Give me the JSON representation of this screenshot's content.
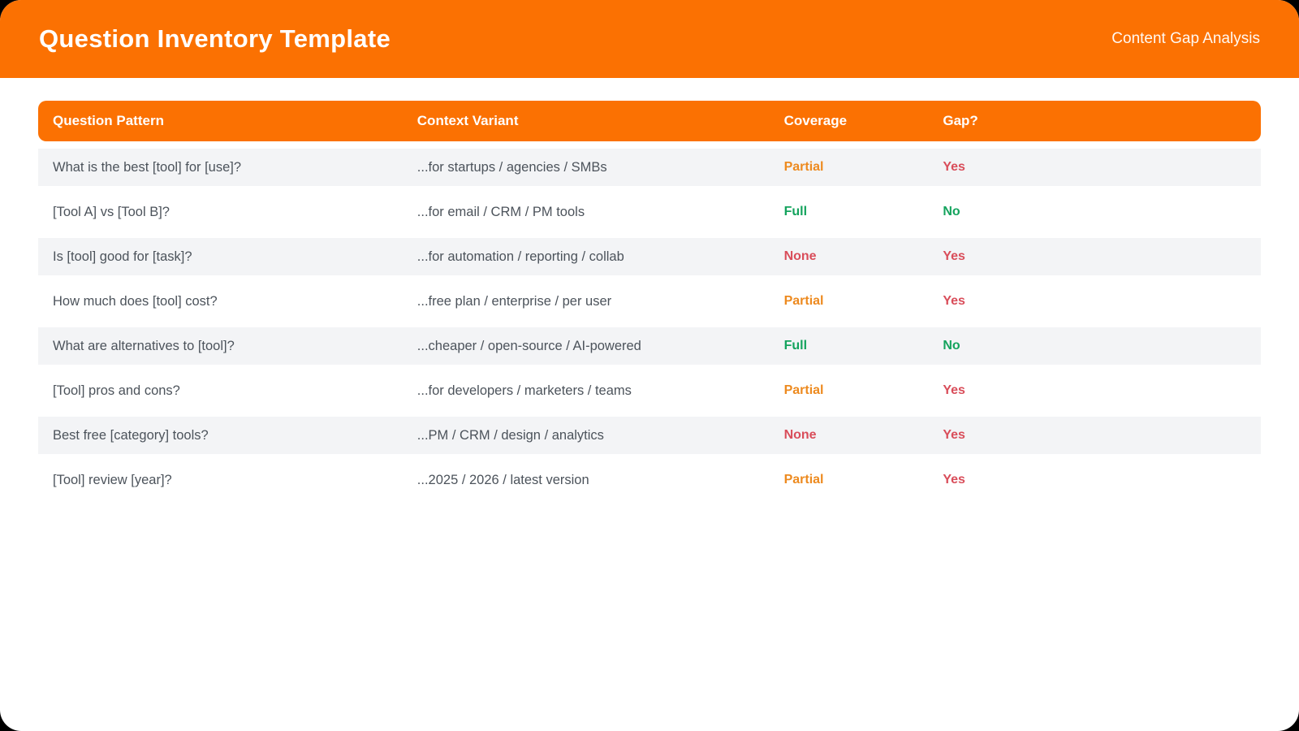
{
  "header": {
    "title": "Question Inventory Template",
    "subtitle": "Content Gap Analysis"
  },
  "table": {
    "columns": [
      "Question Pattern",
      "Context Variant",
      "Coverage",
      "Gap?"
    ],
    "rows": [
      {
        "pattern": "What is the best [tool] for [use]?",
        "variant": "...for startups / agencies / SMBs",
        "coverage": "Partial",
        "gap": "Yes"
      },
      {
        "pattern": "[Tool A] vs [Tool B]?",
        "variant": "...for email / CRM / PM tools",
        "coverage": "Full",
        "gap": "No"
      },
      {
        "pattern": "Is [tool] good for [task]?",
        "variant": "...for automation / reporting / collab",
        "coverage": "None",
        "gap": "Yes"
      },
      {
        "pattern": "How much does [tool] cost?",
        "variant": "...free plan / enterprise / per user",
        "coverage": "Partial",
        "gap": "Yes"
      },
      {
        "pattern": "What are alternatives to [tool]?",
        "variant": "...cheaper / open-source / AI-powered",
        "coverage": "Full",
        "gap": "No"
      },
      {
        "pattern": "[Tool] pros and cons?",
        "variant": "...for developers / marketers / teams",
        "coverage": "Partial",
        "gap": "Yes"
      },
      {
        "pattern": "Best free [category] tools?",
        "variant": "...PM / CRM / design / analytics",
        "coverage": "None",
        "gap": "Yes"
      },
      {
        "pattern": "[Tool] review [year]?",
        "variant": "...2025 / 2026 / latest version",
        "coverage": "Partial",
        "gap": "Yes"
      }
    ]
  },
  "colors": {
    "accent": "#FB7102",
    "partial": "#ED8A1F",
    "full": "#14A35D",
    "none": "#D94D5A",
    "yes": "#D94D5A",
    "no": "#14A35D"
  }
}
